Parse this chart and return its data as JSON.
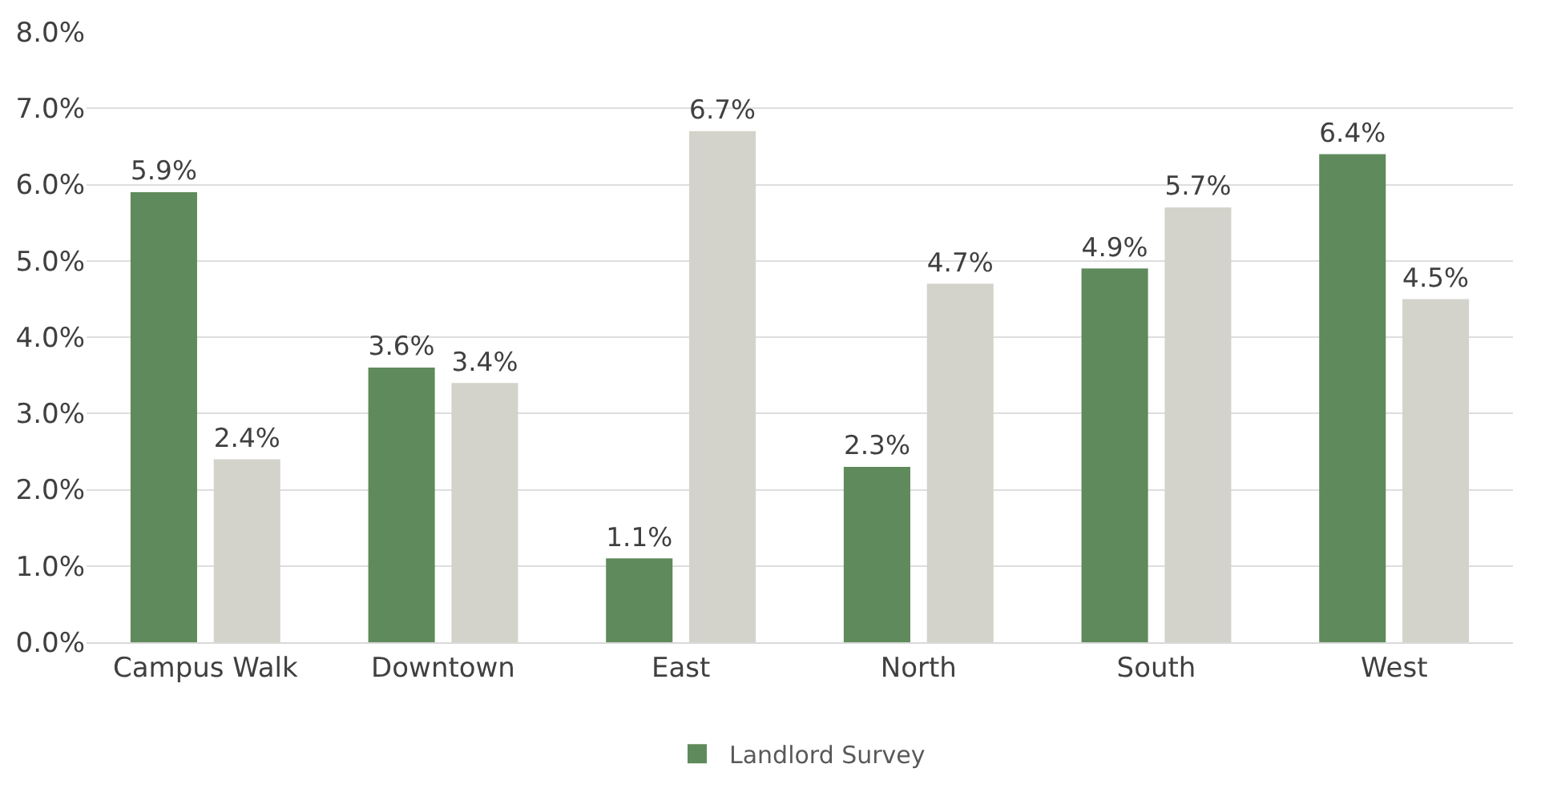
{
  "chart_data": {
    "type": "bar",
    "categories": [
      "Campus Walk",
      "Downtown",
      "East",
      "North",
      "South",
      "West"
    ],
    "series": [
      {
        "name": "Landlord Survey",
        "color": "#5f8a5b",
        "values": [
          5.9,
          3.6,
          1.1,
          2.3,
          4.9,
          6.4
        ],
        "value_labels": [
          "5.9%",
          "3.6%",
          "1.1%",
          "2.3%",
          "4.9%",
          "6.4%"
        ]
      },
      {
        "color": "#d3d3cb",
        "values": [
          2.4,
          3.4,
          6.7,
          4.7,
          5.7,
          4.5
        ],
        "value_labels": [
          "2.4%",
          "3.4%",
          "6.7%",
          "4.7%",
          "5.7%",
          "4.5%"
        ]
      }
    ],
    "ylim": [
      0,
      8
    ],
    "yticks": [
      {
        "value": 0,
        "label": "0.0%"
      },
      {
        "value": 1,
        "label": "1.0%"
      },
      {
        "value": 2,
        "label": "2.0%"
      },
      {
        "value": 3,
        "label": "3.0%"
      },
      {
        "value": 4,
        "label": "4.0%"
      },
      {
        "value": 5,
        "label": "5.0%"
      },
      {
        "value": 6,
        "label": "6.0%"
      },
      {
        "value": 7,
        "label": "7.0%"
      },
      {
        "value": 8,
        "label": "8.0%"
      }
    ],
    "grid": "y",
    "legend": "bottom"
  }
}
